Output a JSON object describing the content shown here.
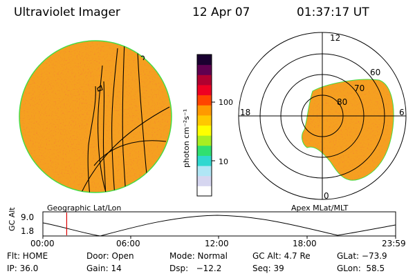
{
  "header": {
    "instrument": "Ultraviolet Imager",
    "date": "12 Apr 07",
    "time": "01:37:17 UT"
  },
  "left_panel": {
    "caption": "Geographic Lat/Lon",
    "fill_color": "#f5a020",
    "edge_color": "#44dd44"
  },
  "right_panel": {
    "caption": "Apex MLat/MLT",
    "mlt_labels": {
      "top": "12",
      "left": "18",
      "right": "6",
      "bottom": "0"
    },
    "mlat_labels": [
      "60",
      "70",
      "80"
    ],
    "fill_color": "#f5a020"
  },
  "colorbar": {
    "unit_label": "photon cm⁻²s⁻¹",
    "tick_labels": [
      "100",
      "10"
    ],
    "colors": [
      "#ffffff",
      "#d6d6f0",
      "#b0e6f5",
      "#30d8d0",
      "#30e070",
      "#a8ee22",
      "#ffff00",
      "#ffc800",
      "#ff9900",
      "#ff4400",
      "#ee0022",
      "#b00030",
      "#600050",
      "#1a0030"
    ]
  },
  "altitude_plot": {
    "y_label": "GC Alt",
    "y_ticks": [
      "9.0",
      "1.8"
    ],
    "x_ticks": [
      "00:00",
      "06:00",
      "12:00",
      "18:00",
      "23:59"
    ],
    "marker_hour": 1.62,
    "marker_color": "#dd0000"
  },
  "status": {
    "row1": [
      "Flt: HOME",
      "Door: Open",
      "Mode: Normal",
      "GC Alt: 4.7 Re",
      "GLat: −73.9"
    ],
    "row2": [
      "IP: 36.0",
      "Gain: 14",
      "Dsp:   −12.2",
      "Seq: 39",
      "GLon:  58.5"
    ]
  }
}
